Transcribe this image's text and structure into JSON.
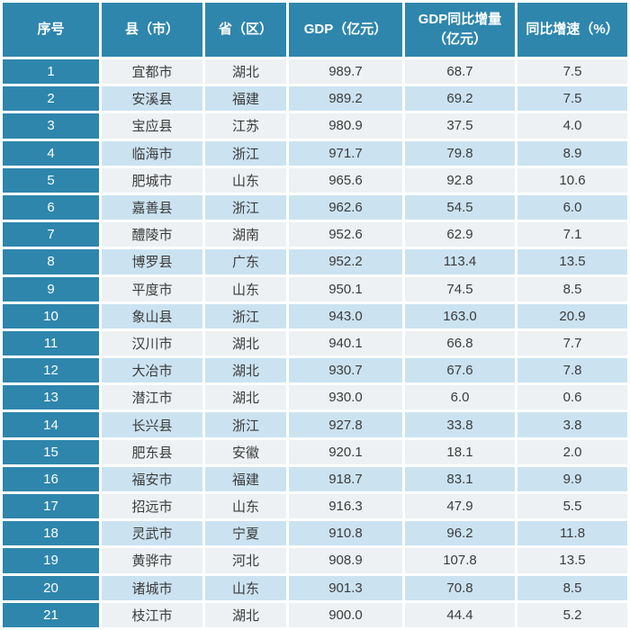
{
  "colors": {
    "accent_teal": "#2E86AD",
    "row_light_bg": "#EDF1F3",
    "row_blue_bg": "#CBE3F1",
    "grid_gap": "#FFFFFF",
    "header_text": "#FFFFFF",
    "data_text": "#3B3B3B"
  },
  "chart_data": {
    "type": "table",
    "columns": [
      "序号",
      "县（市）",
      "省（区）",
      "GDP（亿元）",
      "GDP同比增量（亿元）",
      "同比增速（%）"
    ],
    "rows": [
      [
        "1",
        "宜都市",
        "湖北",
        "989.7",
        "68.7",
        "7.5"
      ],
      [
        "2",
        "安溪县",
        "福建",
        "989.2",
        "69.2",
        "7.5"
      ],
      [
        "3",
        "宝应县",
        "江苏",
        "980.9",
        "37.5",
        "4.0"
      ],
      [
        "4",
        "临海市",
        "浙江",
        "971.7",
        "79.8",
        "8.9"
      ],
      [
        "5",
        "肥城市",
        "山东",
        "965.6",
        "92.8",
        "10.6"
      ],
      [
        "6",
        "嘉善县",
        "浙江",
        "962.6",
        "54.5",
        "6.0"
      ],
      [
        "7",
        "醴陵市",
        "湖南",
        "952.6",
        "62.9",
        "7.1"
      ],
      [
        "8",
        "博罗县",
        "广东",
        "952.2",
        "113.4",
        "13.5"
      ],
      [
        "9",
        "平度市",
        "山东",
        "950.1",
        "74.5",
        "8.5"
      ],
      [
        "10",
        "象山县",
        "浙江",
        "943.0",
        "163.0",
        "20.9"
      ],
      [
        "11",
        "汉川市",
        "湖北",
        "940.1",
        "66.8",
        "7.7"
      ],
      [
        "12",
        "大冶市",
        "湖北",
        "930.7",
        "67.6",
        "7.8"
      ],
      [
        "13",
        "潜江市",
        "湖北",
        "930.0",
        "6.0",
        "0.6"
      ],
      [
        "14",
        "长兴县",
        "浙江",
        "927.8",
        "33.8",
        "3.8"
      ],
      [
        "15",
        "肥东县",
        "安徽",
        "920.1",
        "18.1",
        "2.0"
      ],
      [
        "16",
        "福安市",
        "福建",
        "918.7",
        "83.1",
        "9.9"
      ],
      [
        "17",
        "招远市",
        "山东",
        "916.3",
        "47.9",
        "5.5"
      ],
      [
        "18",
        "灵武市",
        "宁夏",
        "910.8",
        "96.2",
        "11.8"
      ],
      [
        "19",
        "黄骅市",
        "河北",
        "908.9",
        "107.8",
        "13.5"
      ],
      [
        "20",
        "诸城市",
        "山东",
        "901.3",
        "70.8",
        "8.5"
      ],
      [
        "21",
        "枝江市",
        "湖北",
        "900.0",
        "44.4",
        "5.2"
      ]
    ]
  }
}
